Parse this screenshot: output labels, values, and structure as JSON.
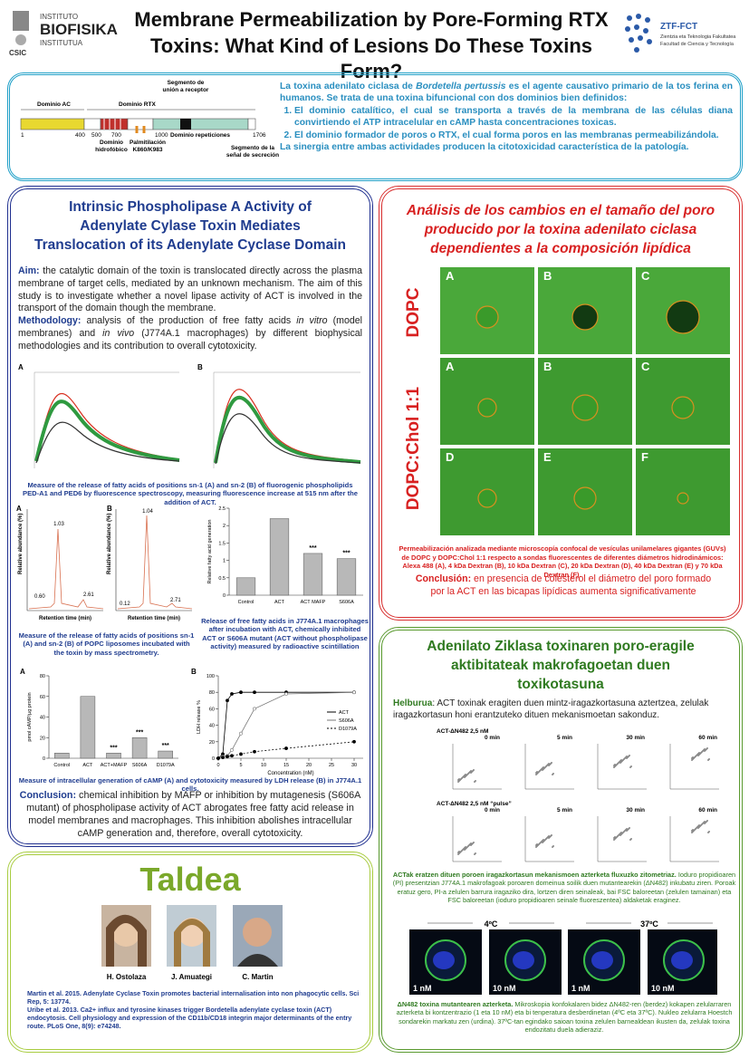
{
  "header": {
    "logo_left": [
      "INSTITUTO",
      "BIOFISIKA",
      "INSTITUTUA"
    ],
    "logo_csic": "CSIC",
    "title_lines": [
      "Membrane Permeabilization by Pore-Forming RTX",
      "Toxins: What Kind of Lesions Do These Toxins Form?"
    ],
    "logo_right": {
      "name": "ZTF-FCT",
      "lines": [
        "Zientzia eta Teknologia Fakultatea",
        "Facultad de Ciencia y Tecnología"
      ]
    }
  },
  "intro": {
    "diagram": {
      "dominio_ac": "Dominio AC",
      "dominio_rtx": "Dominio RTX",
      "receptor": [
        "Segmento de",
        "unión a receptor"
      ],
      "positions": [
        1,
        400,
        500,
        700,
        1000,
        1706
      ],
      "hidrofobico": [
        "Dominio",
        "hidrofóbico"
      ],
      "palmitilacion": [
        "Palmitilación",
        "K860/K983"
      ],
      "repeticiones": "Dominio repeticiones",
      "secrecion": [
        "Segmento de la",
        "señal de secreción"
      ]
    },
    "text_before": "La toxina adenilato ciclasa de ",
    "species": "Bordetella pertussis",
    "text_after": " es el agente causativo primario de la tos ferina en humanos. Se trata de una toxina bifuncional con dos dominios bien definidos:",
    "list": [
      "El dominio catalítico, el cual se transporta a través de la membrana de las células diana convirtiendo el ATP intracelular en cAMP hasta concentraciones toxicas.",
      "El dominio formador de poros o RTX, el cual forma poros en las membranas permeabilizándola."
    ],
    "closing": "La sinergia entre ambas actividades producen la citotoxicidad característica de la patología."
  },
  "left": {
    "title_lines": [
      "Intrinsic Phospholipase A Activity of",
      "Adenylate Cylase Toxin Mediates",
      "Translocation of its Adenylate Cyclase Domain"
    ],
    "aim_label": "Aim:",
    "aim": " the catalytic domain of the toxin is translocated directly across the plasma membrane of target cells, mediated by an unknown mechanism. The aim of this study is to investigate whether a novel lipase activity of ACT is involved in the transport of the domain though the membrane.",
    "meth_label": "Methodology:",
    "meth_1": " analysis of the production of free fatty acids ",
    "meth_invitro": "in vitro",
    "meth_2": " (model membranes) and ",
    "meth_invivo": "in vivo",
    "meth_3": " (J774A.1 macrophages) by different biophysical methodologies and its contribution to overall cytotoxicity.",
    "fig1_panels": [
      "A",
      "B"
    ],
    "fig1_caption": "Measure of the release of fatty acids of positions sn-1 (A) and sn-2 (B) of fluorogenic phospholipids PED-A1 and PED6 by fluorescence spectroscopy, measuring fluorescence increase at 515 nm after the addition of ACT.",
    "fig2_panels": [
      "A",
      "B"
    ],
    "fig2_ylabel": "Relative abundance (%)",
    "fig2_xlabel": "Retention time (min)",
    "fig2_peaks": [
      [
        "1.03",
        "0.60",
        "2.61"
      ],
      [
        "1.04",
        "0.12",
        "2.71"
      ]
    ],
    "fig2_caption": "Measure of the release of fatty acids of positions sn-1 (A) and sn-2 (B) of POPC liposomes incubated with the toxin by mass spectrometry.",
    "ffa_caption": "Release of free fatty acids in J774A.1 macrophages after incubation with ACT, chemically inhibited ACT or S606A mutant (ACT without phospholipase activity) measured by radioactive scintillation",
    "fig3_caption": "Measure of intracellular generation of cAMP (A) and cytotoxicity measured by LDH release (B) in J774A.1 cells.",
    "conclusion_label": "Conclusion:",
    "conclusion": " chemical inhibition by MAFP or inhibition by mutagenesis (S606A mutant) of phospholipase activity of ACT abrogates free fatty acid release in model membranes and macrophages. This inhibition abolishes intracellular cAMP generation and, therefore, overall cytotoxicity."
  },
  "chart_data": [
    {
      "type": "bar",
      "ylabel": "Relative fatty acid generation",
      "categories": [
        "Control",
        "ACT",
        "ACT MAFP",
        "S606A"
      ],
      "values": [
        0.5,
        2.2,
        1.2,
        1.05
      ],
      "significance": [
        null,
        null,
        "***",
        "***"
      ],
      "color": "#b8b8b8",
      "ylim": [
        0,
        2.5
      ],
      "yticks": [
        0,
        0.5,
        1,
        1.5,
        2,
        2.5
      ]
    },
    {
      "type": "bar",
      "panel": "A",
      "ylabel": "pmol cAMP/µg protein",
      "categories": [
        "Control",
        "ACT",
        "ACT+MAFP",
        "S606A",
        "D1079A"
      ],
      "values": [
        5,
        60,
        5,
        20,
        7
      ],
      "significance": [
        null,
        null,
        "***",
        "***",
        "***"
      ],
      "color": "#b8b8b8",
      "ylim": [
        0,
        80
      ],
      "yticks": [
        0,
        20,
        40,
        60,
        80
      ]
    },
    {
      "type": "line",
      "panel": "B",
      "ylabel": "LDH release %",
      "xlabel": "Concentration (nM)",
      "xlim": [
        0,
        32
      ],
      "ylim": [
        0,
        100
      ],
      "xticks": [
        0,
        5,
        10,
        15,
        20,
        25,
        30
      ],
      "yticks": [
        0,
        20,
        40,
        60,
        80,
        100
      ],
      "legend": "right",
      "series": [
        {
          "name": "ACT",
          "color": "#000000",
          "x": [
            0,
            1,
            2,
            3,
            5,
            8,
            15,
            30
          ],
          "values": [
            0,
            5,
            70,
            78,
            80,
            80,
            80,
            80
          ]
        },
        {
          "name": "S606A",
          "color": "#777777",
          "x": [
            0,
            1,
            2,
            3,
            5,
            8,
            15,
            30
          ],
          "values": [
            0,
            2,
            3,
            10,
            30,
            60,
            78,
            80
          ]
        },
        {
          "name": "D1079A",
          "color": "#000000",
          "x": [
            0,
            1,
            2,
            3,
            5,
            8,
            15,
            30
          ],
          "values": [
            0,
            1,
            2,
            3,
            5,
            8,
            12,
            20
          ]
        }
      ]
    }
  ],
  "red": {
    "title_lines": [
      "Análisis de los cambios en el tamaño del poro",
      "producido por la toxina adenilato ciclasa",
      "dependientes a la composición lipídica"
    ],
    "row_labels": [
      "DOPC",
      "DOPC:Chol 1:1"
    ],
    "panels": [
      [
        "A",
        "B",
        "C"
      ],
      [
        "A",
        "B",
        "C"
      ],
      [
        "D",
        "E",
        "F"
      ]
    ],
    "caption": "Permeabilización analizada mediante microscopía confocal de vesículas unilamelares gigantes (GUVs) de DOPC y DOPC:Chol 1:1 respecto a sondas fluorescentes de diferentes diámetros hidrodinámicos: Alexa 488 (A), 4 kDa Dextran (B), 10 kDa Dextran (C), 20 kDa Dextran (D), 40 kDa Dextran (E) y 70 kDa Dextran (F).",
    "conclusion_label": "Conclusión:",
    "conclusion": " en presencia de colesterol el diámetro del poro formado por la ACT en las bicapas lipídicas aumenta significativamente"
  },
  "green": {
    "title_lines": [
      "Adenilato Ziklasa toxinaren poro-eragile",
      "aktibitateak makrofagoetan duen",
      "toxikotasuna"
    ],
    "aim_label": "Helburua",
    "aim": ":  ACT toxinak eragiten duen mintz-iragazkortasuna  aztertzea, zelulak iragazkortasun honi erantzuteko dituen mekanismoetan sakonduz.",
    "row_labels": [
      "ACT-ΔN482  2,5 nM",
      "ACT-ΔN482 2,5 nM  “pulse”"
    ],
    "times": [
      "0 min",
      "5 min",
      "30 min",
      "60 min"
    ],
    "caption_bold": "ACTak eratzen dituen poroen iragazkortasun mekanismoen azterketa fluxuzko zitometriaz.",
    "caption": " Ioduro propidioaren (PI) presentzian J774A.1 makrofagoak poroaren domeinua soilik duen mutantearekin (ΔN482) inkubatu ziren. Poroak eratuz gero, PI-a zelulen barrura iragaziko dira, lortzen diren seinaleak, bai FSC baloreetan (zelulen tamainan) eta FSC baloreetan (ioduro propidioaren seinale fluoreszentea) aldaketak eraginez.",
    "temps": [
      "4ºC",
      "37ºC"
    ],
    "concs": [
      "1 nM",
      "10 nM"
    ],
    "caption2_bold": "ΔN482 toxina mutantearen azterketa.",
    "caption2": " Mikroskopia konfokalaren bidez ΔN482-ren (berdez) kokapen zelularraren azterketa bi kontzentrazio (1 eta 10 nM) eta bi tenperatura desberdinetan (4ºC eta 37ºC). Nukleo zelularra Hoestch sondarekin markatu zen (urdina). 37ºC-tan egindako saioan toxina zelulen barnealdean ikusten da, zelulak toxina endozitatu duela adieraziz."
  },
  "team": {
    "title": "Taldea",
    "members": [
      "H. Ostolaza",
      "J. Amuategi",
      "C. Martin"
    ],
    "references": [
      "Martin et al. 2015. Adenylate Cyclase Toxin promotes bacterial internalisation into non phagocytic cells. Sci Rep, 5: 13774.",
      "Uribe et al. 2013. Ca2+ influx and tyrosine kinases trigger Bordetella adenylate cyclase toxin (ACT) endocytosis. Cell physiology and expression of the CD11b/CD18 integrin major determinants of the entry route. PLoS One, 8(9): e74248."
    ]
  }
}
